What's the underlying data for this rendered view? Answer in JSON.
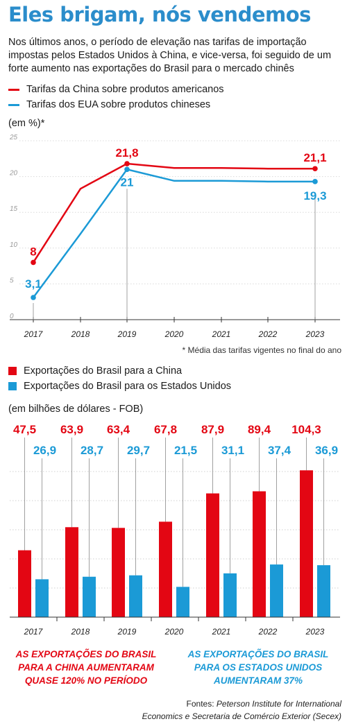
{
  "title": "Eles brigam, nós vendemos",
  "subtitle": "Nos últimos anos, o período de elevação nas tarifas de importação impostas pelos Estados Unidos à China, e vice-versa, foi seguido de um forte aumento nas exportações do Brasil para o mercado chinês",
  "colors": {
    "red": "#e30613",
    "blue": "#1b9ad6",
    "title": "#2b8dcb"
  },
  "line_legend": {
    "china": "Tarifas da China sobre produtos americanos",
    "usa": "Tarifas dos EUA sobre produtos chineses"
  },
  "line_unit": "(em %)*",
  "line_note": "* Média das tarifas vigentes no final do ano",
  "bar_legend": {
    "china": "Exportações do Brasil para a China",
    "usa": "Exportações do Brasil para os Estados Unidos"
  },
  "bar_unit": "(em bilhões de dólares - FOB)",
  "callouts": {
    "china": "As exportações do Brasil para a China aumentaram quase 120% no período",
    "usa": "As exportações do Brasil para os Estados Unidos aumentaram 37%"
  },
  "sources": {
    "prefix": "Fontes: ",
    "line1": "Peterson Institute for International",
    "line2": "Economics e Secretaria de Comércio Exterior (Secex)"
  },
  "chart_data": [
    {
      "type": "line",
      "x": [
        "2017",
        "2018",
        "2019",
        "2020",
        "2021",
        "2022",
        "2023"
      ],
      "ylim": [
        0,
        25
      ],
      "yticks": [
        0,
        5,
        10,
        15,
        20,
        25
      ],
      "series": [
        {
          "name": "Tarifas da China sobre produtos americanos",
          "color": "#e30613",
          "values": [
            8,
            18.3,
            21.8,
            21.2,
            21.2,
            21.1,
            21.1
          ],
          "labels": [
            "8",
            "",
            "21,8",
            "",
            "",
            "",
            "21,1"
          ]
        },
        {
          "name": "Tarifas dos EUA sobre produtos chineses",
          "color": "#1b9ad6",
          "values": [
            3.1,
            12.0,
            21,
            19.4,
            19.4,
            19.3,
            19.3
          ],
          "labels": [
            "3,1",
            "",
            "21",
            "",
            "",
            "",
            "19,3"
          ]
        }
      ]
    },
    {
      "type": "bar",
      "categories": [
        "2017",
        "2018",
        "2019",
        "2020",
        "2021",
        "2022",
        "2023"
      ],
      "ylim": [
        0,
        120
      ],
      "series": [
        {
          "name": "Exportações do Brasil para a China",
          "color": "#e30613",
          "values": [
            47.5,
            63.9,
            63.4,
            67.8,
            87.9,
            89.4,
            104.3
          ],
          "labels": [
            "47,5",
            "63,9",
            "63,4",
            "67,8",
            "87,9",
            "89,4",
            "104,3"
          ]
        },
        {
          "name": "Exportações do Brasil para os Estados Unidos",
          "color": "#1b9ad6",
          "values": [
            26.9,
            28.7,
            29.7,
            21.5,
            31.1,
            37.4,
            36.9
          ],
          "labels": [
            "26,9",
            "28,7",
            "29,7",
            "21,5",
            "31,1",
            "37,4",
            "36,9"
          ]
        }
      ]
    }
  ]
}
